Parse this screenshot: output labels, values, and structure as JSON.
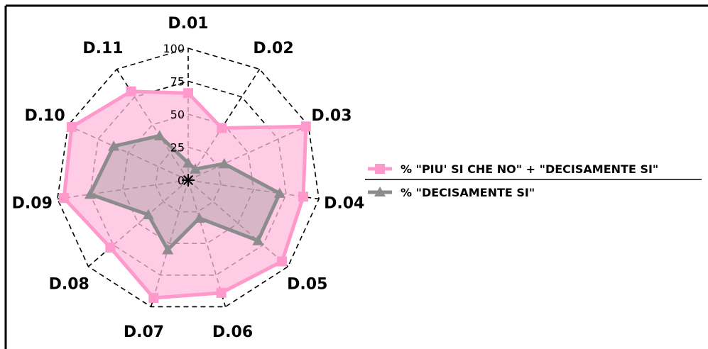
{
  "chart_data": {
    "type": "radar",
    "categories": [
      "D.01",
      "D.02",
      "D.03",
      "D.04",
      "D.05",
      "D.06",
      "D.07",
      "D.08",
      "D.09",
      "D.10",
      "D.11"
    ],
    "rlim": [
      0,
      100
    ],
    "r_ticks": [
      "0",
      "25",
      "50",
      "75",
      "100"
    ],
    "series": [
      {
        "name": "% \"PIU' SI CHE NO\" + \"DECISAMENTE SI\"",
        "values": [
          66,
          47,
          98,
          88,
          94,
          89,
          93,
          78,
          95,
          97,
          80
        ],
        "color": "#ff99cc",
        "fill": "#ffbbdd",
        "marker": "square"
      },
      {
        "name": "% \"DECISAMENTE SI\"",
        "values": [
          13,
          10,
          30,
          70,
          70,
          30,
          55,
          40,
          75,
          62,
          40
        ],
        "color": "#8c8c8c",
        "fill": "#8c8c8c",
        "marker": "triangle"
      }
    ],
    "legend_position": "right"
  }
}
